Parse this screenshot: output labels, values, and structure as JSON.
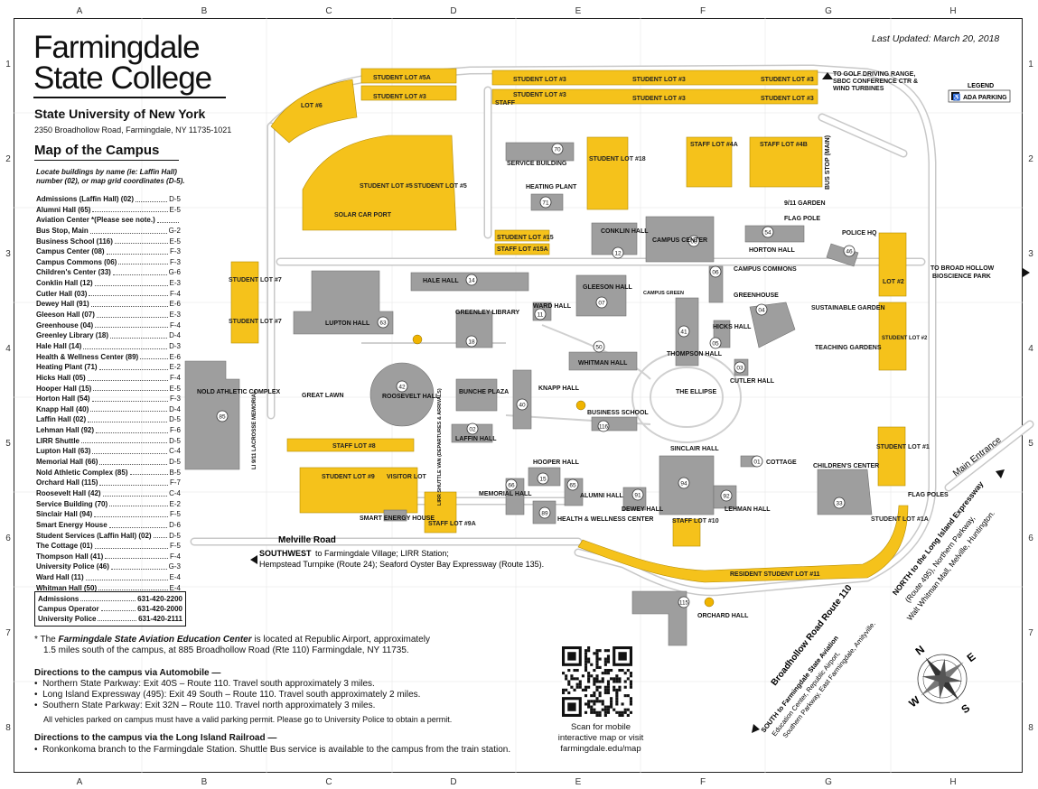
{
  "header": {
    "college_line1": "Farmingdale",
    "college_line2": "State College",
    "suny": "State University of New York",
    "address": "2350 Broadhollow Road, Farmingdale, NY 11735-1021",
    "last_updated": "Last Updated: March 20, 2018"
  },
  "grid": {
    "columns": [
      "A",
      "B",
      "C",
      "D",
      "E",
      "F",
      "G",
      "H"
    ],
    "rows": [
      "1",
      "2",
      "3",
      "4",
      "5",
      "6",
      "7",
      "8"
    ]
  },
  "directory": {
    "title": "Map of the Campus",
    "locate_line1": "Locate buildings by name (ie: Laffin Hall)",
    "locate_line2": "number (02), or map grid coordinates (D-5).",
    "items": [
      {
        "name": "Admissions (Laffin Hall) (02)",
        "coord": "D-5"
      },
      {
        "name": "Alumni Hall (65)",
        "coord": "E-5"
      },
      {
        "name": "Aviation Center *(Please see note.)",
        "coord": ""
      },
      {
        "name": "Bus Stop, Main",
        "coord": "G-2"
      },
      {
        "name": "Business School (116)",
        "coord": "E-5"
      },
      {
        "name": "Campus Center (08)",
        "coord": "F-3"
      },
      {
        "name": "Campus Commons (06)",
        "coord": "F-3"
      },
      {
        "name": "Children's Center (33)",
        "coord": "G-6"
      },
      {
        "name": "Conklin Hall (12)",
        "coord": "E-3"
      },
      {
        "name": "Cutler Hall (03)",
        "coord": "F-4"
      },
      {
        "name": "Dewey Hall (91)",
        "coord": "E-6"
      },
      {
        "name": "Gleeson Hall (07)",
        "coord": "E-3"
      },
      {
        "name": "Greenhouse (04)",
        "coord": "F-4"
      },
      {
        "name": "Greenley Library (18)",
        "coord": "D-4"
      },
      {
        "name": "Hale Hall (14)",
        "coord": "D-3"
      },
      {
        "name": "Health & Wellness Center (89)",
        "coord": "E-6"
      },
      {
        "name": "Heating Plant (71)",
        "coord": "E-2"
      },
      {
        "name": "Hicks Hall (05)",
        "coord": "F-4"
      },
      {
        "name": "Hooper Hall (15)",
        "coord": "E-5"
      },
      {
        "name": "Horton Hall (54)",
        "coord": "F-3"
      },
      {
        "name": "Knapp Hall (40)",
        "coord": "D-4"
      },
      {
        "name": "Laffin Hall (02)",
        "coord": "D-5"
      },
      {
        "name": "Lehman Hall (92)",
        "coord": "F-6"
      },
      {
        "name": "LIRR Shuttle",
        "coord": "D-5"
      },
      {
        "name": "Lupton Hall (63)",
        "coord": "C-4"
      },
      {
        "name": "Memorial Hall (66)",
        "coord": "D-5"
      },
      {
        "name": "Nold Athletic Complex (85)",
        "coord": "B-5"
      },
      {
        "name": "Orchard Hall (115)",
        "coord": "F-7"
      },
      {
        "name": "Roosevelt Hall (42)",
        "coord": "C-4"
      },
      {
        "name": "Service Building (70)",
        "coord": "E-2"
      },
      {
        "name": "Sinclair Hall (94)",
        "coord": "F-5"
      },
      {
        "name": "Smart Energy House",
        "coord": "D-6"
      },
      {
        "name": "Student Services (Laffin Hall) (02)",
        "coord": "D-5"
      },
      {
        "name": "The Cottage (01)",
        "coord": "F-5"
      },
      {
        "name": "Thompson Hall (41)",
        "coord": "F-4"
      },
      {
        "name": "University Police (46)",
        "coord": "G-3"
      },
      {
        "name": "Ward Hall (11)",
        "coord": "E-4"
      },
      {
        "name": "Whitman Hall (50)",
        "coord": "E-4"
      }
    ]
  },
  "phones": [
    {
      "name": "Admissions",
      "number": "631-420-2200"
    },
    {
      "name": "Campus Operator",
      "number": "631-420-2000"
    },
    {
      "name": "University Police",
      "number": "631-420-2111"
    }
  ],
  "notes": {
    "aviation_prefix": "* The ",
    "aviation_bold": "Farmingdale State Aviation Education Center",
    "aviation_rest": " is located at Republic Airport, approximately",
    "aviation_line2": "1.5 miles south of the campus, at  885 Broadhollow Road (Rte 110) Farmingdale, NY 11735.",
    "auto_heading": "Directions to the campus via  Automobile —",
    "auto_items": [
      "Northern State Parkway:  Exit 40S – Route 110. Travel south approximately 3 miles.",
      "Long Island Expressway (495):  Exit 49 South – Route 110.  Travel south approximately 2 miles.",
      "Southern State Parkway: Exit 32N – Route 110. Travel north approximately 3 miles."
    ],
    "parking": "All vehicles parked on campus must have a valid parking permit.  Please go to University Police to obtain a permit.",
    "rr_heading": "Directions to the campus via the Long Island Railroad —",
    "rr_item": "Ronkonkoma branch to the Farmingdale Station. Shuttle Bus service is available to the campus from the train station."
  },
  "qr": {
    "line1": "Scan for mobile",
    "line2": "interactive map or visit",
    "line3": "farmingdale.edu/map"
  },
  "legend": {
    "title": "LEGEND",
    "ada": "ADA PARKING"
  },
  "map_labels": {
    "lot6": "LOT #6",
    "lot5a": "STUDENT LOT #5A",
    "lot3": "STUDENT LOT #3",
    "lot3b": "STUDENT LOT #3",
    "lot3c": "STUDENT LOT #3",
    "lot3d": "STUDENT LOT #3",
    "lot3e": "STUDENT LOT #3",
    "lot3f": "STUDENT LOT #3",
    "lot3g": "STUDENT LOT #3",
    "staff": "STAFF",
    "golf1": "TO GOLF DRIVING RANGE,",
    "golf2": "SBDC CONFERENCE CTR &",
    "golf3": "WIND TURBINES",
    "service": "SERVICE BUILDING",
    "heating": "HEATING PLANT",
    "lot18": "STUDENT LOT #18",
    "staff4a": "STAFF LOT #4A",
    "staff4b": "STAFF LOT #4B",
    "busstop": "BUS STOP (MAIN)",
    "lot5": "STUDENT LOT #5",
    "lot5b": "STUDENT LOT #5",
    "solar": "SOLAR CAR PORT",
    "lot15": "STUDENT LOT #15",
    "staff15a": "STAFF LOT #15A",
    "conklin": "CONKLIN HALL",
    "campus_center": "CAMPUS CENTER",
    "garden": "9/11 GARDEN",
    "flagpole": "FLAG POLE",
    "horton": "HORTON HALL",
    "police": "POLICE HQ",
    "lot7": "STUDENT LOT #7",
    "lot7b": "STUDENT LOT #7",
    "hale": "HALE HALL",
    "gleeson": "GLEESON HALL",
    "ward": "WARD HALL",
    "campus_green": "CAMPUS GREEN",
    "campus_commons": "CAMPUS COMMONS",
    "greenhouse": "GREENHOUSE",
    "sustainable": "SUSTAINABLE GARDEN",
    "teaching": "TEACHING GARDENS",
    "lot2": "LOT #2",
    "lot2b": "STUDENT LOT #2",
    "broadhollow1": "TO BROAD HOLLOW",
    "broadhollow2": "BIOSCIENCE PARK",
    "lupton": "LUPTON HALL",
    "greenley": "GREENLEY LIBRARY",
    "whitman": "WHITMAN HALL",
    "thompson": "THOMPSON HALL",
    "hicks": "HICKS HALL",
    "cutler": "CUTLER HALL",
    "nold": "NOLD ATHLETIC COMPLEX",
    "great_lawn": "GREAT LAWN",
    "roosevelt": "ROOSEVELT HALL",
    "bunche": "BUNCHE PLAZA",
    "knapp": "KNAPP HALL",
    "ellipse": "THE ELLIPSE",
    "business": "BUSINESS SCHOOL",
    "laffin": "LAFFIN HALL",
    "staff8": "STAFF LOT #8",
    "lacrosse": "LI 9/11 LACROSSE MEMORIAL",
    "lirr": "LIRR SHUTTLE VAN (DEPARTURES & ARRIVALS)",
    "sinclair": "SINCLAIR HALL",
    "cottage": "COTTAGE",
    "childrens": "CHILDREN'S CENTER",
    "lot1": "STUDENT LOT #1",
    "flagpoles": "FLAG POLES",
    "lot9": "STUDENT LOT #9",
    "visitor": "VISITOR LOT",
    "hooper": "HOOPER HALL",
    "memorial": "MEMORIAL HALL",
    "alumni": "ALUMNI HALL",
    "dewey": "DEWEY HALL",
    "lehman": "LEHMAN HALL",
    "health": "HEALTH & WELLNESS CENTER",
    "staff10": "STAFF LOT #10",
    "smart": "SMART ENERGY HOUSE",
    "staff9a": "STAFF LOT #9A",
    "lot1a": "STUDENT LOT #1A",
    "melville": "Melville Road",
    "southwest_bold": "SOUTHWEST",
    "southwest1": " to Farmingdale Village; LIRR Station;",
    "southwest2": "Hempstead Turnpike (Route 24); Seaford Oyster Bay Expressway (Route 135).",
    "resident11": "RESIDENT STUDENT LOT #11",
    "orchard": "ORCHARD HALL",
    "main_entrance": "Main Entrance",
    "north1": "NORTH to the Long Island Expressway",
    "north2": "(Route 495), Northern Parkway,",
    "north3": "Walt Whitman Mall, Melville, Huntington.",
    "broadhollow_road": "Broadhollow Road  Route 110",
    "south1": "SOUTH to Farmingdale State Aviation",
    "south2": "Education Center, Republic Airport,",
    "south3": "Southern Parkway, East Farmingdale, Amityville."
  },
  "compass": {
    "n": "N",
    "s": "S",
    "e": "E",
    "w": "W"
  },
  "colors": {
    "lot": "#f5c21b",
    "building": "#9e9e9e",
    "road": "#c8c8c8"
  }
}
